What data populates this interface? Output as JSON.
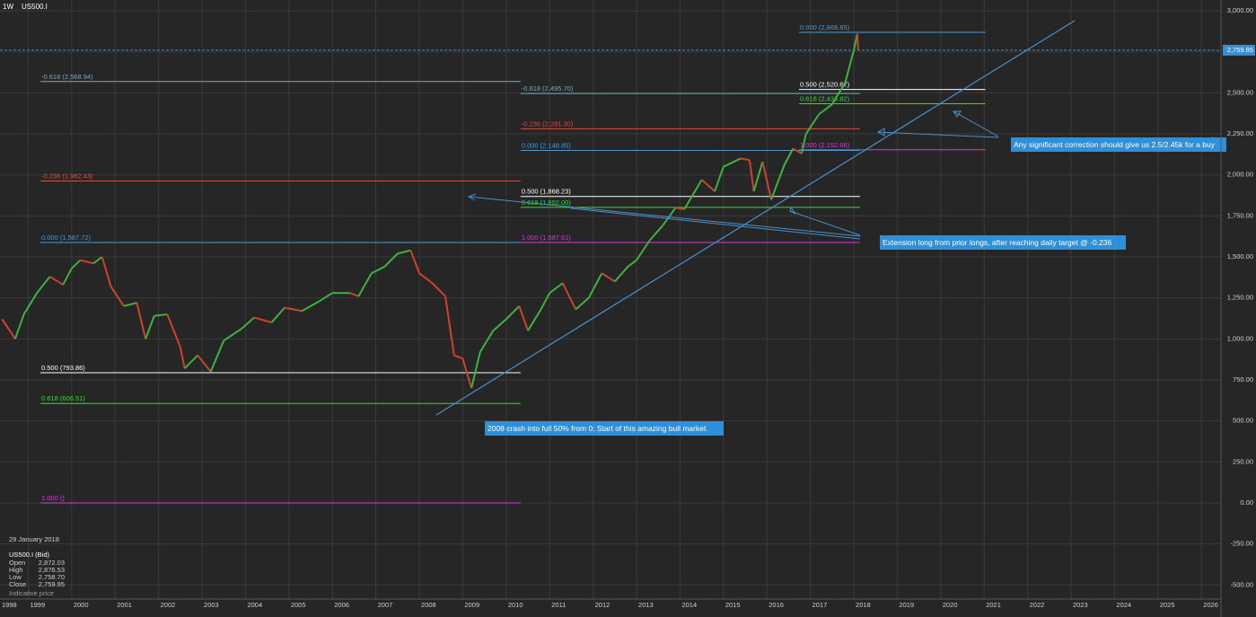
{
  "header": {
    "timeframe": "1W",
    "symbol": "US500.I"
  },
  "chart_data": {
    "type": "line",
    "x": [
      1998.4,
      1998.7,
      1998.9,
      1999.2,
      1999.5,
      1999.8,
      2000.0,
      2000.2,
      2000.5,
      2000.7,
      2000.9,
      2001.2,
      2001.5,
      2001.7,
      2001.9,
      2002.2,
      2002.5,
      2002.6,
      2002.9,
      2003.2,
      2003.5,
      2003.9,
      2004.2,
      2004.6,
      2004.9,
      2005.3,
      2005.7,
      2006.0,
      2006.4,
      2006.6,
      2006.9,
      2007.2,
      2007.5,
      2007.8,
      2008.0,
      2008.3,
      2008.6,
      2008.8,
      2009.0,
      2009.2,
      2009.4,
      2009.7,
      2010.0,
      2010.3,
      2010.5,
      2010.8,
      2011.0,
      2011.3,
      2011.6,
      2011.9,
      2012.2,
      2012.5,
      2012.8,
      2013.0,
      2013.3,
      2013.6,
      2013.9,
      2014.1,
      2014.5,
      2014.8,
      2015.0,
      2015.4,
      2015.6,
      2015.7,
      2015.9,
      2016.1,
      2016.4,
      2016.6,
      2016.8,
      2016.9,
      2017.2,
      2017.5,
      2017.8,
      2018.0,
      2018.08,
      2018.1
    ],
    "values": [
      1120,
      1000,
      1150,
      1280,
      1380,
      1330,
      1430,
      1480,
      1460,
      1500,
      1320,
      1200,
      1220,
      1000,
      1140,
      1150,
      950,
      820,
      900,
      800,
      990,
      1060,
      1130,
      1100,
      1190,
      1170,
      1230,
      1280,
      1280,
      1260,
      1400,
      1440,
      1520,
      1540,
      1400,
      1340,
      1260,
      900,
      880,
      700,
      920,
      1050,
      1120,
      1200,
      1050,
      1180,
      1280,
      1340,
      1180,
      1250,
      1400,
      1350,
      1440,
      1480,
      1600,
      1690,
      1800,
      1790,
      1970,
      1900,
      2050,
      2100,
      2090,
      1900,
      2080,
      1850,
      2060,
      2160,
      2130,
      2250,
      2370,
      2430,
      2560,
      2760,
      2860,
      2760
    ],
    "up_color": "#3cb43c",
    "down_color": "#d04030",
    "xlim": [
      1998.35,
      2026.45
    ],
    "xticks": [
      1998,
      1999,
      2000,
      2001,
      2002,
      2003,
      2004,
      2005,
      2006,
      2007,
      2008,
      2009,
      2010,
      2011,
      2012,
      2013,
      2014,
      2015,
      2016,
      2017,
      2018,
      2019,
      2020,
      2021,
      2022,
      2023,
      2024,
      2025,
      2026
    ],
    "ylim": [
      -586,
      3066
    ],
    "yticks": [
      {
        "value": 3000,
        "label": "3,000.00"
      },
      {
        "value": 2750,
        "label": "2,750.00"
      },
      {
        "value": 2500,
        "label": "2,500.00"
      },
      {
        "value": 2250,
        "label": "2,250.00"
      },
      {
        "value": 2000,
        "label": "2,000.00"
      },
      {
        "value": 1750,
        "label": "1,750.00"
      },
      {
        "value": 1500,
        "label": "1,500.00"
      },
      {
        "value": 1250,
        "label": "1,250.00"
      },
      {
        "value": 1000,
        "label": "1,000.00"
      },
      {
        "value": 750,
        "label": "750.00"
      },
      {
        "value": 500,
        "label": "500.00"
      },
      {
        "value": 250,
        "label": "250.00"
      },
      {
        "value": 0,
        "label": "0.00"
      },
      {
        "value": -250,
        "label": "-250.00"
      },
      {
        "value": -500,
        "label": "-500.00"
      }
    ],
    "grid": true,
    "current_price": {
      "value": 2759.95,
      "label": "2,759.95",
      "color": "#3a8fd0"
    },
    "trendline": {
      "x": [
        2008.39,
        2023.08
      ],
      "values": [
        536,
        2940
      ],
      "color": "#4a90c8"
    },
    "fib_levels": [
      {
        "label": "0.000 (2,868.65)",
        "value": 2868.65,
        "x": [
          2016.74,
          2021.03
        ],
        "color": "#4a9ad8"
      },
      {
        "label": "0.500 (2,520.67)",
        "value": 2520.67,
        "x": [
          2016.74,
          2021.03
        ],
        "color": "#ffffff"
      },
      {
        "label": "0.618 (2,433.82)",
        "value": 2433.82,
        "x": [
          2016.74,
          2021.03
        ],
        "color": "#33dd33"
      },
      {
        "label": "1.000 (2,152.68)",
        "value": 2152.68,
        "x": [
          2016.74,
          2021.03
        ],
        "color": "#dd33dd"
      },
      {
        "label": "-0.618 (2,495.70)",
        "value": 2495.7,
        "x": [
          2010.33,
          2018.14
        ],
        "color": "#7aaab0"
      },
      {
        "label": "-0.236 (2,281.30)",
        "value": 2281.3,
        "x": [
          2010.33,
          2018.14
        ],
        "color": "#e04a3a"
      },
      {
        "label": "0.000 (2,148.85)",
        "value": 2148.85,
        "x": [
          2010.33,
          2018.14
        ],
        "color": "#4a9ad8"
      },
      {
        "label": "0.500 (1,868.23)",
        "value": 1868.23,
        "x": [
          2010.33,
          2018.14
        ],
        "color": "#ffffff"
      },
      {
        "label": "0.618 (1,802.00)",
        "value": 1802.0,
        "x": [
          2010.33,
          2018.14
        ],
        "color": "#33dd33"
      },
      {
        "label": "1.000 (1,587.61)",
        "value": 1587.61,
        "x": [
          2010.33,
          2018.14
        ],
        "color": "#dd33dd"
      },
      {
        "label": "-0.618 (2,568.94)",
        "value": 2568.94,
        "x": [
          1999.28,
          2010.33
        ],
        "color": "#7aaab0"
      },
      {
        "label": "-0.236 (1,962.43)",
        "value": 1962.43,
        "x": [
          1999.28,
          2010.33
        ],
        "color": "#e04a3a"
      },
      {
        "label": "0.000 (1,587.72)",
        "value": 1587.72,
        "x": [
          1999.28,
          2010.33
        ],
        "color": "#4a9ad8"
      },
      {
        "label": "0.500 (793.86)",
        "value": 793.86,
        "x": [
          1999.28,
          2010.33
        ],
        "color": "#ffffff"
      },
      {
        "label": "0.618 (606.51)",
        "value": 606.51,
        "x": [
          1999.28,
          2010.33
        ],
        "color": "#33dd33"
      },
      {
        "label": "1.000 ()",
        "value": 0,
        "x": [
          1999.28,
          2010.33
        ],
        "color": "#dd33dd"
      }
    ],
    "annotations": [
      "2008 crash into full 50% from 0; Start of this amazing bull market",
      "Extension long from prior longs, after reaching daily target @ -0.236",
      "Any significant correction should give us 2.5/2.45k for a buy"
    ]
  },
  "info": {
    "date": "29 January 2018",
    "instrument": "US500.I (Bid)",
    "fields": [
      {
        "label": "Open",
        "value": "2,872.03"
      },
      {
        "label": "High",
        "value": "2,876.53"
      },
      {
        "label": "Low",
        "value": "2,758.70"
      },
      {
        "label": "Close",
        "value": "2,759.95"
      }
    ],
    "note": "Indicative price"
  }
}
